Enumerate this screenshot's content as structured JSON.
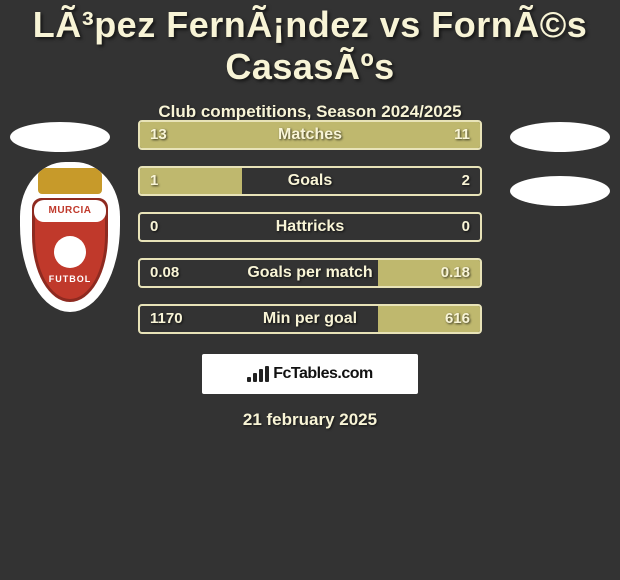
{
  "title": "LÃ³pez FernÃ¡ndez vs FornÃ©s CasasÃºs",
  "subtitle": "Club competitions, Season 2024/2025",
  "date": "21 february 2025",
  "brand": "FcTables.com",
  "badge": {
    "top_text": "MURCIA",
    "bottom_text": "FUTBOL"
  },
  "colors": {
    "background": "#333333",
    "bar_border": "#e8e3b8",
    "bar_fill": "#bfb86e",
    "text": "#f8f4d6"
  },
  "rows": [
    {
      "label": "Matches",
      "left": "13",
      "right": "11",
      "left_pct": 100,
      "right_pct": 0,
      "highlight": "left"
    },
    {
      "label": "Goals",
      "left": "1",
      "right": "2",
      "left_pct": 30,
      "right_pct": 0,
      "highlight": "left"
    },
    {
      "label": "Hattricks",
      "left": "0",
      "right": "0",
      "left_pct": 0,
      "right_pct": 0,
      "highlight": "none"
    },
    {
      "label": "Goals per match",
      "left": "0.08",
      "right": "0.18",
      "left_pct": 0,
      "right_pct": 30,
      "highlight": "right"
    },
    {
      "label": "Min per goal",
      "left": "1170",
      "right": "616",
      "left_pct": 0,
      "right_pct": 30,
      "highlight": "right"
    }
  ]
}
